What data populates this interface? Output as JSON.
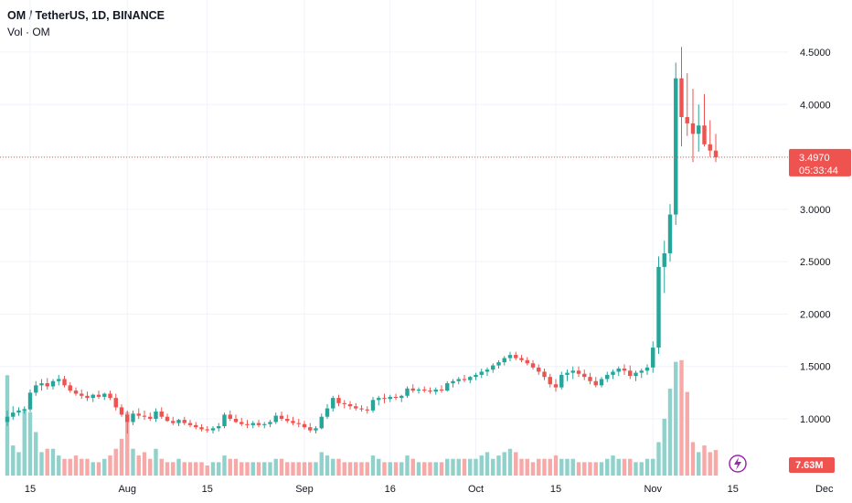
{
  "chart_data": {
    "type": "candlestick",
    "title": "OM / TetherUS, 1D, BINANCE",
    "volume_label": "Vol · OM",
    "ylim": [
      0.52,
      4.9
    ],
    "yticks": [
      "4.5000",
      "4.0000",
      "3.5000",
      "3.0000",
      "2.5000",
      "2.0000",
      "1.5000",
      "1.0000"
    ],
    "ytick_values": [
      4.5,
      4.0,
      3.5,
      3.0,
      2.5,
      2.0,
      1.5,
      1.0
    ],
    "xticks": [
      {
        "label": "15",
        "idx": 4
      },
      {
        "label": "Aug",
        "idx": 21
      },
      {
        "label": "15",
        "idx": 35
      },
      {
        "label": "Sep",
        "idx": 52
      },
      {
        "label": "16",
        "idx": 67
      },
      {
        "label": "Oct",
        "idx": 82
      },
      {
        "label": "15",
        "idx": 96
      },
      {
        "label": "Nov",
        "idx": 113
      },
      {
        "label": "15",
        "idx": 127
      },
      {
        "label": "Dec",
        "idx": 143
      }
    ],
    "last_price": {
      "value": 3.497,
      "label": "3.4970",
      "countdown": "05:33:44"
    },
    "last_volume_label": "7.63M",
    "colors": {
      "up": "#26a69a",
      "down": "#ef5350",
      "up_volume": "#90d2cb",
      "down_volume": "#f7a9a7",
      "grid": "#f0f3fa",
      "axis_text": "#131722"
    },
    "ohlc": [
      [
        0.97,
        1.08,
        0.93,
        1.02
      ],
      [
        1.02,
        1.12,
        0.99,
        1.06
      ],
      [
        1.06,
        1.11,
        1.03,
        1.08
      ],
      [
        1.08,
        1.12,
        1.05,
        1.09
      ],
      [
        1.09,
        1.28,
        1.07,
        1.25
      ],
      [
        1.25,
        1.36,
        1.22,
        1.32
      ],
      [
        1.32,
        1.38,
        1.27,
        1.34
      ],
      [
        1.34,
        1.39,
        1.28,
        1.31
      ],
      [
        1.31,
        1.38,
        1.28,
        1.36
      ],
      [
        1.36,
        1.42,
        1.32,
        1.38
      ],
      [
        1.38,
        1.41,
        1.3,
        1.32
      ],
      [
        1.32,
        1.35,
        1.25,
        1.27
      ],
      [
        1.27,
        1.3,
        1.22,
        1.24
      ],
      [
        1.24,
        1.28,
        1.19,
        1.22
      ],
      [
        1.22,
        1.26,
        1.17,
        1.2
      ],
      [
        1.2,
        1.24,
        1.16,
        1.23
      ],
      [
        1.23,
        1.27,
        1.19,
        1.21
      ],
      [
        1.21,
        1.25,
        1.18,
        1.24
      ],
      [
        1.24,
        1.27,
        1.18,
        1.2
      ],
      [
        1.2,
        1.24,
        1.08,
        1.11
      ],
      [
        1.11,
        1.14,
        1.02,
        1.04
      ],
      [
        1.04,
        1.08,
        0.86,
        0.97
      ],
      [
        0.97,
        1.08,
        0.94,
        1.05
      ],
      [
        1.05,
        1.1,
        1.0,
        1.03
      ],
      [
        1.03,
        1.08,
        0.99,
        1.02
      ],
      [
        1.02,
        1.06,
        0.98,
        1.0
      ],
      [
        1.0,
        1.1,
        0.97,
        1.07
      ],
      [
        1.07,
        1.11,
        1.0,
        1.02
      ],
      [
        1.02,
        1.05,
        0.97,
        0.98
      ],
      [
        0.98,
        1.02,
        0.94,
        0.96
      ],
      [
        0.96,
        1.0,
        0.93,
        0.99
      ],
      [
        0.99,
        1.02,
        0.94,
        0.96
      ],
      [
        0.96,
        0.99,
        0.92,
        0.94
      ],
      [
        0.94,
        0.97,
        0.9,
        0.92
      ],
      [
        0.92,
        0.95,
        0.88,
        0.9
      ],
      [
        0.9,
        0.93,
        0.87,
        0.89
      ],
      [
        0.89,
        0.93,
        0.86,
        0.91
      ],
      [
        0.91,
        0.96,
        0.88,
        0.93
      ],
      [
        0.93,
        1.06,
        0.91,
        1.04
      ],
      [
        1.04,
        1.08,
        0.98,
        1.0
      ],
      [
        1.0,
        1.04,
        0.96,
        0.97
      ],
      [
        0.97,
        1.01,
        0.93,
        0.95
      ],
      [
        0.95,
        0.99,
        0.91,
        0.94
      ],
      [
        0.94,
        0.98,
        0.91,
        0.96
      ],
      [
        0.96,
        0.99,
        0.92,
        0.94
      ],
      [
        0.94,
        0.97,
        0.91,
        0.95
      ],
      [
        0.95,
        0.99,
        0.92,
        0.97
      ],
      [
        0.97,
        1.06,
        0.95,
        1.03
      ],
      [
        1.03,
        1.07,
        0.98,
        1.0
      ],
      [
        1.0,
        1.04,
        0.96,
        0.98
      ],
      [
        0.98,
        1.02,
        0.94,
        0.96
      ],
      [
        0.96,
        1.0,
        0.92,
        0.95
      ],
      [
        0.95,
        0.98,
        0.9,
        0.92
      ],
      [
        0.92,
        0.96,
        0.87,
        0.89
      ],
      [
        0.89,
        0.93,
        0.86,
        0.91
      ],
      [
        0.91,
        1.05,
        0.9,
        1.02
      ],
      [
        1.02,
        1.14,
        1.0,
        1.1
      ],
      [
        1.1,
        1.22,
        1.07,
        1.2
      ],
      [
        1.2,
        1.23,
        1.12,
        1.15
      ],
      [
        1.15,
        1.18,
        1.1,
        1.14
      ],
      [
        1.14,
        1.17,
        1.09,
        1.12
      ],
      [
        1.12,
        1.15,
        1.08,
        1.1
      ],
      [
        1.1,
        1.13,
        1.07,
        1.09
      ],
      [
        1.09,
        1.12,
        1.05,
        1.08
      ],
      [
        1.08,
        1.21,
        1.06,
        1.18
      ],
      [
        1.18,
        1.22,
        1.13,
        1.2
      ],
      [
        1.2,
        1.24,
        1.15,
        1.19
      ],
      [
        1.19,
        1.23,
        1.16,
        1.21
      ],
      [
        1.21,
        1.24,
        1.18,
        1.2
      ],
      [
        1.2,
        1.23,
        1.16,
        1.22
      ],
      [
        1.22,
        1.31,
        1.2,
        1.29
      ],
      [
        1.29,
        1.33,
        1.25,
        1.27
      ],
      [
        1.27,
        1.3,
        1.24,
        1.28
      ],
      [
        1.28,
        1.31,
        1.25,
        1.27
      ],
      [
        1.27,
        1.3,
        1.24,
        1.26
      ],
      [
        1.26,
        1.3,
        1.23,
        1.28
      ],
      [
        1.28,
        1.32,
        1.25,
        1.27
      ],
      [
        1.27,
        1.36,
        1.26,
        1.34
      ],
      [
        1.34,
        1.38,
        1.3,
        1.36
      ],
      [
        1.36,
        1.4,
        1.33,
        1.38
      ],
      [
        1.38,
        1.42,
        1.35,
        1.37
      ],
      [
        1.37,
        1.41,
        1.34,
        1.4
      ],
      [
        1.4,
        1.44,
        1.37,
        1.42
      ],
      [
        1.42,
        1.48,
        1.39,
        1.45
      ],
      [
        1.45,
        1.49,
        1.41,
        1.47
      ],
      [
        1.47,
        1.53,
        1.44,
        1.51
      ],
      [
        1.51,
        1.56,
        1.48,
        1.54
      ],
      [
        1.54,
        1.6,
        1.51,
        1.58
      ],
      [
        1.58,
        1.64,
        1.55,
        1.61
      ],
      [
        1.61,
        1.64,
        1.56,
        1.58
      ],
      [
        1.58,
        1.61,
        1.54,
        1.56
      ],
      [
        1.56,
        1.59,
        1.51,
        1.53
      ],
      [
        1.53,
        1.56,
        1.47,
        1.49
      ],
      [
        1.49,
        1.52,
        1.42,
        1.45
      ],
      [
        1.45,
        1.48,
        1.37,
        1.4
      ],
      [
        1.4,
        1.43,
        1.3,
        1.33
      ],
      [
        1.33,
        1.38,
        1.26,
        1.3
      ],
      [
        1.3,
        1.45,
        1.28,
        1.42
      ],
      [
        1.42,
        1.47,
        1.36,
        1.44
      ],
      [
        1.44,
        1.5,
        1.38,
        1.46
      ],
      [
        1.46,
        1.5,
        1.4,
        1.43
      ],
      [
        1.43,
        1.47,
        1.37,
        1.4
      ],
      [
        1.4,
        1.44,
        1.33,
        1.36
      ],
      [
        1.36,
        1.4,
        1.3,
        1.32
      ],
      [
        1.32,
        1.4,
        1.3,
        1.38
      ],
      [
        1.38,
        1.45,
        1.35,
        1.42
      ],
      [
        1.42,
        1.47,
        1.38,
        1.45
      ],
      [
        1.45,
        1.5,
        1.41,
        1.48
      ],
      [
        1.48,
        1.52,
        1.42,
        1.46
      ],
      [
        1.46,
        1.51,
        1.38,
        1.41
      ],
      [
        1.41,
        1.46,
        1.36,
        1.44
      ],
      [
        1.44,
        1.48,
        1.39,
        1.46
      ],
      [
        1.46,
        1.52,
        1.42,
        1.49
      ],
      [
        1.49,
        1.74,
        1.44,
        1.68
      ],
      [
        1.68,
        2.55,
        1.62,
        2.45
      ],
      [
        2.45,
        2.7,
        2.2,
        2.58
      ],
      [
        2.58,
        3.05,
        2.5,
        2.95
      ],
      [
        2.95,
        4.4,
        2.85,
        4.25
      ],
      [
        4.25,
        4.55,
        3.6,
        3.88
      ],
      [
        3.88,
        4.3,
        3.7,
        3.82
      ],
      [
        3.82,
        4.15,
        3.45,
        3.72
      ],
      [
        3.72,
        4.0,
        3.55,
        3.8
      ],
      [
        3.8,
        4.1,
        3.6,
        3.62
      ],
      [
        3.62,
        3.85,
        3.5,
        3.56
      ],
      [
        3.56,
        3.72,
        3.45,
        3.497
      ]
    ],
    "volume_m": [
      30,
      9,
      7,
      20,
      19,
      13,
      7,
      8,
      8,
      6,
      5,
      5,
      6,
      5,
      5,
      4,
      4,
      5,
      6,
      8,
      11,
      19,
      8,
      6,
      7,
      5,
      8,
      5,
      4,
      4,
      5,
      4,
      4,
      4,
      4,
      3,
      4,
      4,
      6,
      5,
      5,
      4,
      4,
      4,
      4,
      4,
      4,
      5,
      5,
      4,
      4,
      4,
      4,
      4,
      4,
      7,
      6,
      5,
      5,
      4,
      4,
      4,
      4,
      4,
      6,
      5,
      4,
      4,
      4,
      4,
      6,
      5,
      4,
      4,
      4,
      4,
      4,
      5,
      5,
      5,
      5,
      5,
      5,
      6,
      7,
      5,
      6,
      7,
      8,
      7,
      5,
      5,
      4,
      5,
      5,
      5,
      6,
      5,
      5,
      5,
      4,
      4,
      4,
      4,
      4,
      5,
      6,
      5,
      5,
      5,
      4,
      4,
      5,
      5,
      10,
      17,
      26,
      34,
      38,
      25,
      10,
      7,
      9,
      7,
      7.63
    ],
    "volume_ylim": [
      0,
      100
    ]
  }
}
